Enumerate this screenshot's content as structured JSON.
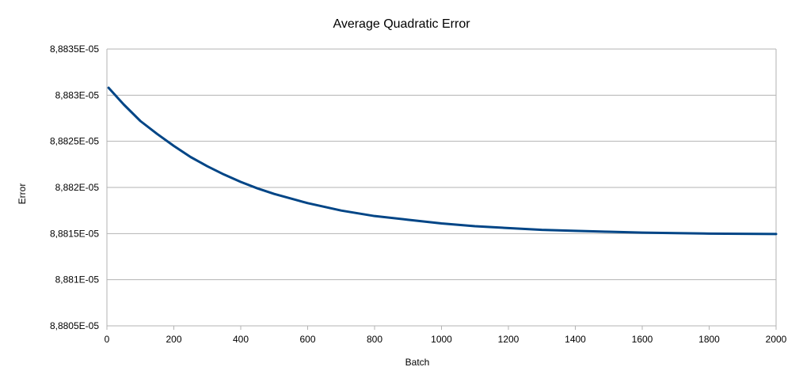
{
  "chart_data": {
    "type": "line",
    "title": "Average Quadratic Error",
    "xlabel": "Batch",
    "ylabel": "Error",
    "xlim": [
      0,
      2000
    ],
    "ylim": [
      8.8805e-05,
      8.8835e-05
    ],
    "x_ticks": [
      "0",
      "200",
      "400",
      "600",
      "800",
      "1000",
      "1200",
      "1400",
      "1600",
      "1800",
      "2000"
    ],
    "y_ticks": [
      "8,8805E-05",
      "8,881E-05",
      "8,8815E-05",
      "8,882E-05",
      "8,8825E-05",
      "8,883E-05",
      "8,8835E-05"
    ],
    "grid": true,
    "legend": "none",
    "series": [
      {
        "color": "#004586",
        "x": [
          5,
          50,
          100,
          150,
          200,
          250,
          300,
          350,
          400,
          450,
          500,
          600,
          700,
          800,
          900,
          1000,
          1100,
          1200,
          1300,
          1400,
          1500,
          1600,
          1700,
          1800,
          1900,
          2000
        ],
        "y": [
          8.88308e-05,
          8.8829e-05,
          8.88272e-05,
          8.88258e-05,
          8.88245e-05,
          8.88233e-05,
          8.88223e-05,
          8.88214e-05,
          8.88206e-05,
          8.88199e-05,
          8.88193e-05,
          8.88183e-05,
          8.88175e-05,
          8.88169e-05,
          8.88165e-05,
          8.88161e-05,
          8.88158e-05,
          8.88156e-05,
          8.88154e-05,
          8.88153e-05,
          8.88152e-05,
          8.88151e-05,
          8.881505e-05,
          8.8815e-05,
          8.881497e-05,
          8.881495e-05
        ]
      }
    ]
  }
}
